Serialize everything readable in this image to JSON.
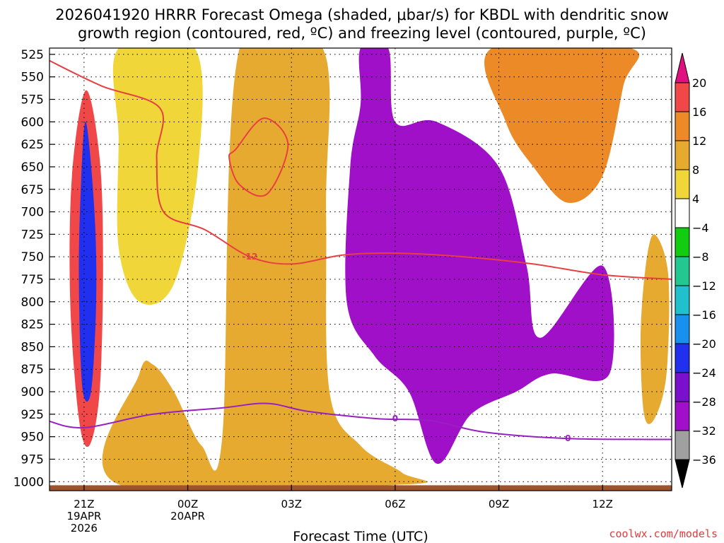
{
  "chart_data": {
    "type": "contour",
    "title_line1": "2026041920 HRRR Forecast Omega (shaded, μbar/s) for KBDL with dendritic snow",
    "title_line2": "growth region (contoured, red, ºC) and freezing level (contoured, purple, ºC)",
    "xlabel": "Forecast Time (UTC)",
    "credit": "coolwx.com/models",
    "y_axis": {
      "unit": "hPa",
      "range": [
        1010,
        518
      ],
      "ticks": [
        525,
        550,
        575,
        600,
        625,
        650,
        675,
        700,
        725,
        750,
        775,
        800,
        825,
        850,
        875,
        900,
        925,
        950,
        975,
        1000
      ]
    },
    "x_axis": {
      "unit": "hours from 20Z 19 Apr 2026",
      "range": [
        0,
        18
      ],
      "ticks": [
        {
          "hour": 1,
          "label": "21Z",
          "date1": "19APR",
          "date2": "2026"
        },
        {
          "hour": 4,
          "label": "00Z",
          "date1": "20APR",
          "date2": ""
        },
        {
          "hour": 7,
          "label": "03Z",
          "date1": "",
          "date2": ""
        },
        {
          "hour": 10,
          "label": "06Z",
          "date1": "",
          "date2": ""
        },
        {
          "hour": 13,
          "label": "09Z",
          "date1": "",
          "date2": ""
        },
        {
          "hour": 16,
          "label": "12Z",
          "date1": "",
          "date2": ""
        }
      ]
    },
    "colorbar": {
      "ticks": [
        "20",
        "16",
        "12",
        "8",
        "4",
        "−4",
        "−8",
        "−12",
        "−16",
        "−20",
        "−24",
        "−28",
        "−32",
        "−36"
      ],
      "colors": [
        "#e8e8e8",
        "#f0d638",
        "#e6aa30",
        "#ec8a28",
        "#f04848",
        "#ffffff",
        "#11cc11",
        "#22c890",
        "#20c0cc",
        "#1890ee",
        "#2030ee",
        "#7a10cc",
        "#a010c8",
        "#a0a0a0",
        "#e01080"
      ]
    },
    "omega_regions": [
      {
        "name": "positive-omega-early",
        "band": 4,
        "points": [
          [
            1.05,
            565
          ],
          [
            1.45,
            640
          ],
          [
            1.55,
            760
          ],
          [
            1.45,
            900
          ],
          [
            1.15,
            960
          ],
          [
            0.85,
            930
          ],
          [
            0.6,
            800
          ],
          [
            0.65,
            660
          ]
        ]
      },
      {
        "name": "negative-omega-core-a",
        "band": 10,
        "points": [
          [
            1.05,
            600
          ],
          [
            1.3,
            700
          ],
          [
            1.35,
            800
          ],
          [
            1.2,
            900
          ],
          [
            0.95,
            895
          ],
          [
            0.85,
            780
          ],
          [
            0.9,
            680
          ]
        ]
      },
      {
        "name": "positive-omega-col-a",
        "band": 1,
        "points": [
          [
            2.0,
            518
          ],
          [
            4.2,
            518
          ],
          [
            4.3,
            650
          ],
          [
            3.6,
            780
          ],
          [
            2.6,
            800
          ],
          [
            2.0,
            740
          ],
          [
            2.0,
            620
          ]
        ]
      },
      {
        "name": "positive-omega-col-b",
        "band": 2,
        "points": [
          [
            5.5,
            518
          ],
          [
            7.9,
            518
          ],
          [
            8.0,
            700
          ],
          [
            8.1,
            900
          ],
          [
            9.0,
            960
          ],
          [
            10.2,
            990
          ],
          [
            10.3,
            1003
          ],
          [
            2.0,
            1003
          ],
          [
            2.6,
            880
          ],
          [
            3.0,
            870
          ],
          [
            3.6,
            900
          ],
          [
            4.4,
            960
          ],
          [
            5.0,
            950
          ]
        ]
      },
      {
        "name": "negative-omega-col-c",
        "band": 12,
        "points": [
          [
            9.0,
            518
          ],
          [
            9.8,
            518
          ],
          [
            10.0,
            600
          ],
          [
            11.2,
            600
          ],
          [
            13.0,
            650
          ],
          [
            13.8,
            760
          ],
          [
            14.2,
            840
          ],
          [
            16.0,
            760
          ],
          [
            16.2,
            880
          ],
          [
            14.5,
            880
          ],
          [
            13.5,
            900
          ],
          [
            12.2,
            925
          ],
          [
            11.2,
            980
          ],
          [
            10.4,
            900
          ],
          [
            9.4,
            860
          ],
          [
            8.6,
            800
          ],
          [
            8.7,
            650
          ],
          [
            9.0,
            580
          ]
        ]
      },
      {
        "name": "positive-omega-late",
        "band": 3,
        "points": [
          [
            12.8,
            518
          ],
          [
            16.8,
            518
          ],
          [
            16.6,
            560
          ],
          [
            16.0,
            660
          ],
          [
            15.0,
            690
          ],
          [
            14.0,
            650
          ],
          [
            13.2,
            600
          ]
        ]
      },
      {
        "name": "positive-omega-far",
        "band": 2,
        "points": [
          [
            17.5,
            725
          ],
          [
            17.9,
            770
          ],
          [
            17.85,
            880
          ],
          [
            17.5,
            930
          ],
          [
            17.2,
            925
          ],
          [
            17.1,
            840
          ],
          [
            17.25,
            760
          ]
        ]
      }
    ],
    "dendritic_contours": [
      {
        "label": "-12",
        "color": "#e84040",
        "points": [
          [
            0.0,
            532
          ],
          [
            1.5,
            560
          ],
          [
            3.2,
            585
          ],
          [
            3.1,
            640
          ],
          [
            3.3,
            700
          ],
          [
            4.5,
            720
          ],
          [
            5.8,
            750
          ],
          [
            7.0,
            758
          ],
          [
            8.5,
            748
          ],
          [
            10.0,
            746
          ],
          [
            12.0,
            750
          ],
          [
            14.0,
            758
          ],
          [
            16.0,
            770
          ],
          [
            18.0,
            775
          ]
        ]
      },
      {
        "label": "",
        "color": "#e84040",
        "points": [
          [
            5.4,
            630
          ],
          [
            6.2,
            596
          ],
          [
            6.9,
            625
          ],
          [
            6.3,
            680
          ],
          [
            5.5,
            670
          ],
          [
            5.2,
            640
          ]
        ]
      }
    ],
    "freezing_contours": [
      {
        "label": "0",
        "color": "#9920c0",
        "points": [
          [
            0.0,
            933
          ],
          [
            1.0,
            940
          ],
          [
            3.0,
            925
          ],
          [
            5.0,
            918
          ],
          [
            6.3,
            913
          ],
          [
            7.5,
            922
          ],
          [
            9.5,
            930
          ],
          [
            11.0,
            932
          ],
          [
            12.6,
            945
          ],
          [
            15.0,
            952
          ],
          [
            18.0,
            953
          ]
        ]
      }
    ]
  }
}
